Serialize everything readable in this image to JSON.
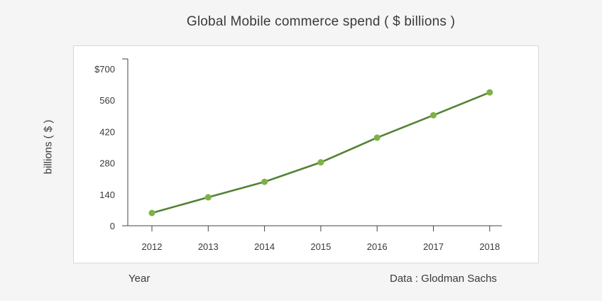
{
  "colors": {
    "line": "#548235",
    "marker": "#7cb342",
    "axis": "#444444",
    "text": "#3a3a3a"
  },
  "source_note": "Data : Glodman Sachs",
  "chart_data": {
    "type": "line",
    "title": "Global Mobile commerce spend ( $ billions )",
    "xlabel": "Year",
    "ylabel": "billions ( $ )",
    "categories": [
      "2012",
      "2013",
      "2014",
      "2015",
      "2016",
      "2017",
      "2018"
    ],
    "series": [
      {
        "values": [
          57,
          127,
          196,
          283,
          393,
          493,
          595
        ]
      }
    ],
    "ylim": [
      0,
      700
    ],
    "yticks": [
      0,
      140,
      280,
      420,
      560,
      700
    ],
    "ytick_labels": [
      "0",
      "140",
      "280",
      "420",
      "560",
      "$700"
    ],
    "grid": false,
    "legend": "none"
  }
}
